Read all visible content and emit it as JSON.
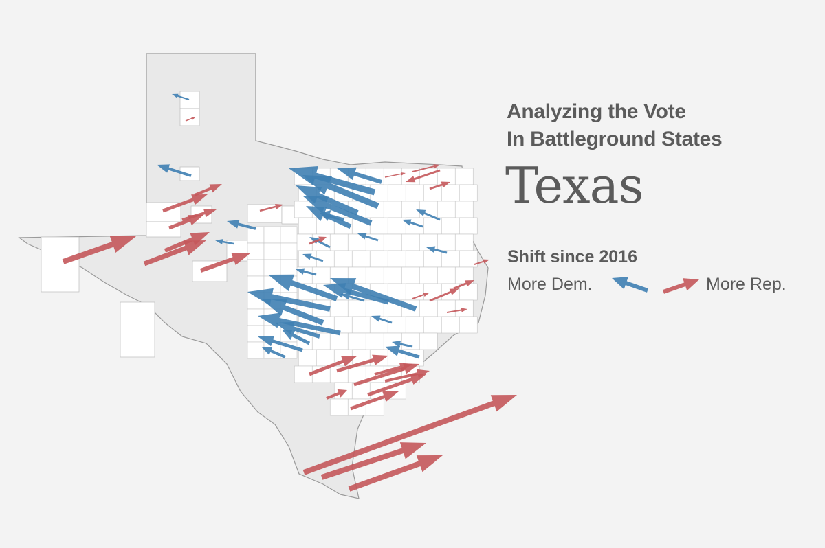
{
  "header": {
    "kicker_line1": "Analyzing the Vote",
    "kicker_line2": "In Battleground States",
    "state": "Texas"
  },
  "legend": {
    "title": "Shift since 2016",
    "dem_label": "More Dem.",
    "rep_label": "More Rep."
  },
  "colors": {
    "background": "#f3f3f3",
    "state_fill": "#e9e9e9",
    "county_fill": "#ffffff",
    "dem": "#3f7fb3",
    "rep": "#c4585b"
  }
}
